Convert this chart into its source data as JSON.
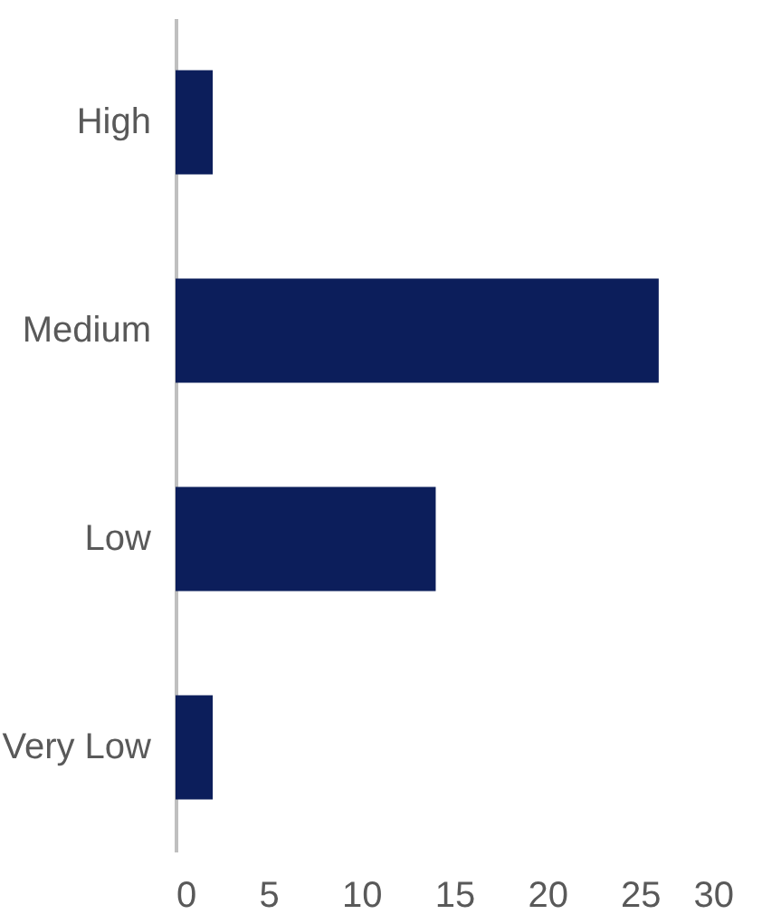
{
  "chart_data": {
    "type": "bar",
    "orientation": "horizontal",
    "categories": [
      "High",
      "Medium",
      "Low",
      "Very Low"
    ],
    "values": [
      2,
      26,
      14,
      2
    ],
    "color": "#0c1e5b",
    "xlim": [
      0,
      30
    ],
    "xticks": [
      0,
      5,
      10,
      15,
      20,
      25,
      30
    ],
    "grid": false
  }
}
